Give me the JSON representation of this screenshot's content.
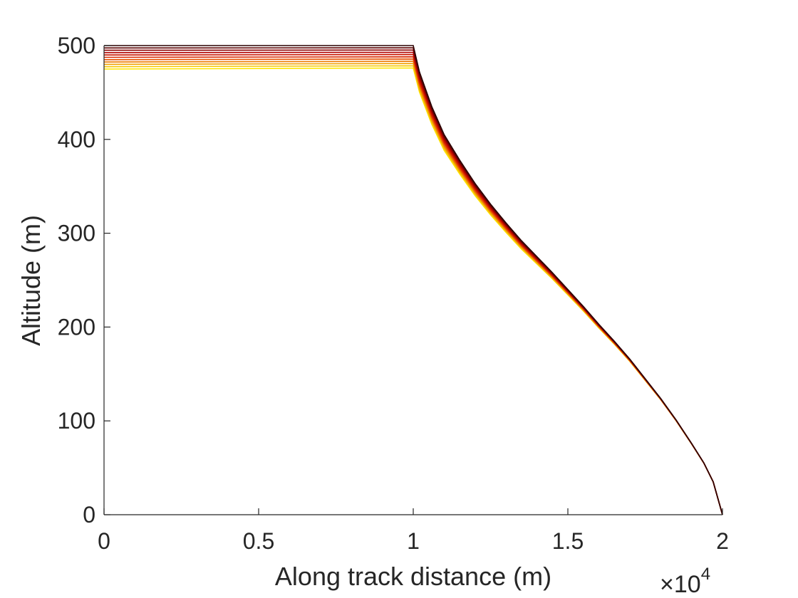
{
  "chart_data": {
    "type": "line",
    "title": "",
    "xlabel": "Along track distance (m)",
    "ylabel": "Altitude (m)",
    "x_multiplier_label": "×10",
    "x_multiplier_exponent": "4",
    "xlim": [
      0,
      20000
    ],
    "ylim": [
      0,
      500
    ],
    "x_ticks": [
      0,
      5000,
      10000,
      15000,
      20000
    ],
    "x_tick_labels": [
      "0",
      "0.5",
      "1",
      "1.5",
      "2"
    ],
    "y_ticks": [
      0,
      100,
      200,
      300,
      400,
      500
    ],
    "y_tick_labels": [
      "0",
      "100",
      "200",
      "300",
      "400",
      "500"
    ],
    "grid": false,
    "legend": "none",
    "colormap": [
      "#ffe600",
      "#f6c800",
      "#f2a100",
      "#ed7a00",
      "#e65000",
      "#d92800",
      "#c81400",
      "#b00000",
      "#8a0000",
      "#5a0000",
      "#2b0000"
    ],
    "series_template": {
      "x": [
        0,
        10000,
        10200,
        10600,
        11000,
        11500,
        12000,
        12500,
        13000,
        13500,
        14000,
        14500,
        15000,
        15500,
        16000,
        16500,
        17000,
        17500,
        18000,
        18500,
        19000,
        19400,
        19700,
        20000
      ],
      "y": [
        500,
        500,
        472,
        435,
        405,
        378,
        353,
        331,
        311,
        292,
        275,
        258,
        240,
        222,
        203,
        185,
        166,
        145,
        124,
        101,
        76,
        55,
        35,
        0
      ]
    },
    "series_start_altitudes": [
      475,
      477.5,
      480,
      482.5,
      485,
      487.5,
      490,
      492.5,
      495,
      497.5,
      500
    ]
  }
}
